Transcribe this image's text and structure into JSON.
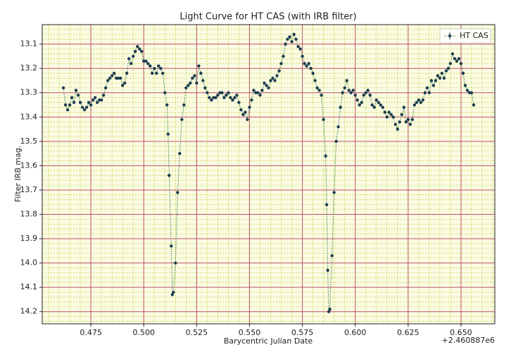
{
  "chart_data": {
    "type": "line",
    "title": "Light Curve for HT CAS (with IRB filter)",
    "x_label": "Barycentric Julian Date",
    "y_label": "Filter IRB mag.",
    "x_offset_label": "+2.460887e6",
    "xlim": [
      0.452,
      0.666
    ],
    "ylim": [
      14.25,
      13.02
    ],
    "y_inverted": true,
    "xticks": [
      0.475,
      {
        "value": 0.5,
        "label": "0.500"
      },
      0.525,
      {
        "value": 0.55,
        "label": "0.550"
      },
      0.575,
      {
        "value": 0.6,
        "label": "0.600"
      },
      0.625,
      {
        "value": 0.65,
        "label": "0.650"
      }
    ],
    "yticks": [
      13.1,
      13.2,
      13.3,
      13.4,
      13.5,
      13.6,
      13.7,
      13.8,
      13.9,
      {
        "value": 14,
        "label": "14.0"
      },
      14.1,
      14.2
    ],
    "grid": true,
    "minor_grid": true,
    "legend": "upper right",
    "x": [
      0.462,
      0.463,
      0.464,
      0.465,
      0.466,
      0.467,
      0.468,
      0.469,
      0.47,
      0.471,
      0.472,
      0.473,
      0.474,
      0.475,
      0.476,
      0.477,
      0.478,
      0.479,
      0.48,
      0.481,
      0.482,
      0.483,
      0.484,
      0.485,
      0.486,
      0.487,
      0.488,
      0.489,
      0.49,
      0.491,
      0.492,
      0.493,
      0.494,
      0.495,
      0.496,
      0.497,
      0.498,
      0.499,
      0.5,
      0.501,
      0.502,
      0.503,
      0.504,
      0.505,
      0.506,
      0.507,
      0.508,
      0.509,
      0.51,
      0.511,
      0.5115,
      0.512,
      0.513,
      0.5135,
      0.514,
      0.515,
      0.516,
      0.517,
      0.518,
      0.519,
      0.52,
      0.521,
      0.522,
      0.523,
      0.524,
      0.525,
      0.526,
      0.527,
      0.528,
      0.529,
      0.53,
      0.531,
      0.532,
      0.533,
      0.534,
      0.535,
      0.536,
      0.537,
      0.538,
      0.539,
      0.54,
      0.541,
      0.542,
      0.543,
      0.544,
      0.545,
      0.546,
      0.547,
      0.548,
      0.549,
      0.55,
      0.551,
      0.552,
      0.553,
      0.554,
      0.555,
      0.556,
      0.557,
      0.558,
      0.559,
      0.56,
      0.561,
      0.562,
      0.563,
      0.564,
      0.565,
      0.566,
      0.567,
      0.568,
      0.569,
      0.57,
      0.571,
      0.572,
      0.573,
      0.574,
      0.575,
      0.576,
      0.577,
      0.578,
      0.579,
      0.58,
      0.581,
      0.582,
      0.583,
      0.584,
      0.585,
      0.586,
      0.5865,
      0.587,
      0.5875,
      0.588,
      0.589,
      0.59,
      0.591,
      0.592,
      0.593,
      0.594,
      0.595,
      0.596,
      0.597,
      0.598,
      0.599,
      0.6,
      0.601,
      0.602,
      0.603,
      0.604,
      0.605,
      0.606,
      0.607,
      0.608,
      0.609,
      0.61,
      0.611,
      0.612,
      0.613,
      0.614,
      0.615,
      0.616,
      0.617,
      0.618,
      0.619,
      0.62,
      0.621,
      0.622,
      0.623,
      0.624,
      0.625,
      0.626,
      0.627,
      0.628,
      0.629,
      0.63,
      0.631,
      0.632,
      0.633,
      0.634,
      0.635,
      0.636,
      0.637,
      0.638,
      0.639,
      0.64,
      0.641,
      0.642,
      0.643,
      0.644,
      0.645,
      0.646,
      0.647,
      0.648,
      0.649,
      0.65,
      0.651,
      0.652,
      0.653,
      0.654,
      0.655,
      0.656
    ],
    "series": [
      {
        "name": "HT CAS",
        "color": "#1c3d4f",
        "line_color": "#3a7a4a",
        "values": [
          13.28,
          13.35,
          13.37,
          13.35,
          13.32,
          13.34,
          13.29,
          13.31,
          13.34,
          13.36,
          13.37,
          13.36,
          13.34,
          13.35,
          13.33,
          13.32,
          13.34,
          13.33,
          13.33,
          13.31,
          13.28,
          13.25,
          13.24,
          13.23,
          13.22,
          13.24,
          13.24,
          13.24,
          13.27,
          13.26,
          13.22,
          13.16,
          13.18,
          13.15,
          13.13,
          13.11,
          13.12,
          13.13,
          13.17,
          13.17,
          13.18,
          13.19,
          13.22,
          13.2,
          13.22,
          13.19,
          13.2,
          13.22,
          13.3,
          13.35,
          13.47,
          13.64,
          13.93,
          14.13,
          14.12,
          14.0,
          13.71,
          13.55,
          13.41,
          13.35,
          13.28,
          13.27,
          13.26,
          13.24,
          13.23,
          13.26,
          13.19,
          13.22,
          13.25,
          13.28,
          13.3,
          13.32,
          13.33,
          13.32,
          13.32,
          13.31,
          13.3,
          13.3,
          13.32,
          13.31,
          13.3,
          13.32,
          13.33,
          13.32,
          13.31,
          13.34,
          13.37,
          13.39,
          13.38,
          13.41,
          13.36,
          13.33,
          13.29,
          13.3,
          13.3,
          13.31,
          13.29,
          13.26,
          13.27,
          13.28,
          13.25,
          13.24,
          13.25,
          13.23,
          13.21,
          13.18,
          13.15,
          13.1,
          13.08,
          13.07,
          13.09,
          13.06,
          13.08,
          13.11,
          13.12,
          13.15,
          13.18,
          13.19,
          13.18,
          13.2,
          13.22,
          13.25,
          13.28,
          13.29,
          13.31,
          13.41,
          13.56,
          13.76,
          14.03,
          14.2,
          14.19,
          13.97,
          13.71,
          13.5,
          13.44,
          13.36,
          13.3,
          13.28,
          13.25,
          13.29,
          13.3,
          13.29,
          13.31,
          13.33,
          13.35,
          13.34,
          13.31,
          13.3,
          13.29,
          13.31,
          13.35,
          13.36,
          13.33,
          13.34,
          13.35,
          13.36,
          13.38,
          13.4,
          13.38,
          13.39,
          13.4,
          13.43,
          13.45,
          13.42,
          13.39,
          13.36,
          13.42,
          13.41,
          13.43,
          13.41,
          13.35,
          13.34,
          13.33,
          13.34,
          13.33,
          13.3,
          13.28,
          13.3,
          13.25,
          13.27,
          13.25,
          13.23,
          13.24,
          13.22,
          13.24,
          13.21,
          13.2,
          13.18,
          13.14,
          13.16,
          13.17,
          13.16,
          13.18,
          13.22,
          13.27,
          13.29,
          13.3,
          13.3,
          13.35
        ]
      }
    ]
  }
}
